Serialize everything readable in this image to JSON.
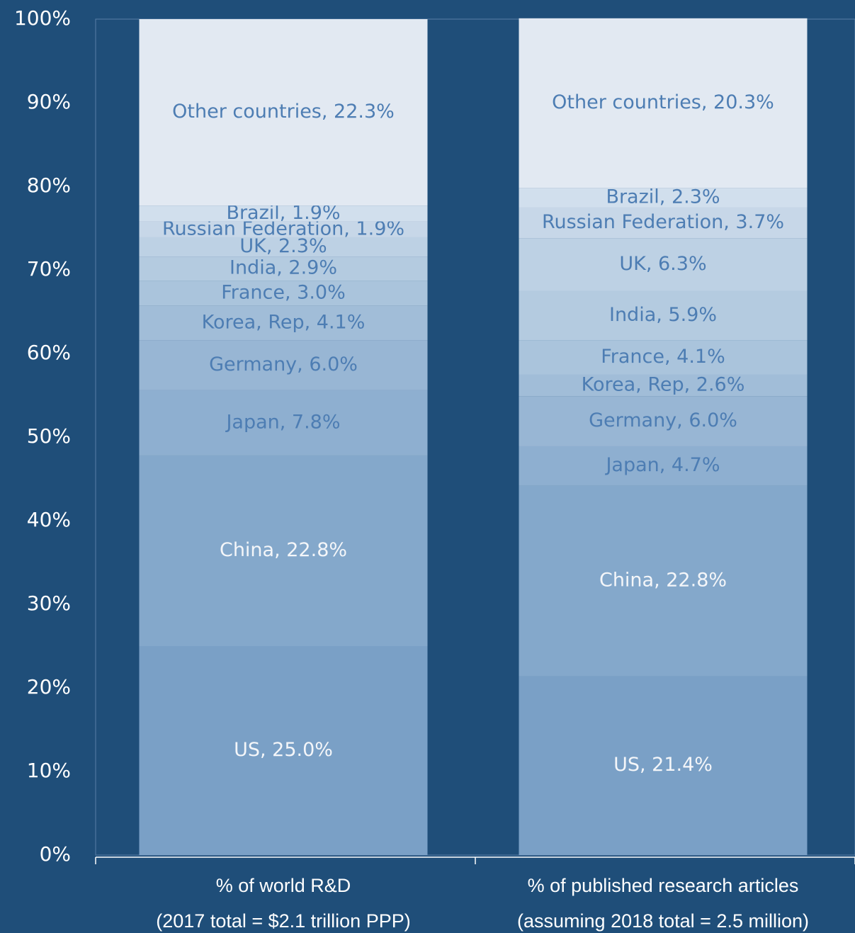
{
  "chart_data": {
    "type": "stacked_bar",
    "categories": [
      "% of world R&D",
      "% of published research articles"
    ],
    "category_notes": [
      "(2017 total = $2.1 trillion PPP)",
      "(assuming 2018 total = 2.5 million)"
    ],
    "ylim": [
      0,
      100
    ],
    "yticks": [
      {
        "value": 0,
        "label": "0%"
      },
      {
        "value": 10,
        "label": "10%"
      },
      {
        "value": 20,
        "label": "20%"
      },
      {
        "value": 30,
        "label": "30%"
      },
      {
        "value": 40,
        "label": "40%"
      },
      {
        "value": 50,
        "label": "50%"
      },
      {
        "value": 60,
        "label": "60%"
      },
      {
        "value": 70,
        "label": "70%"
      },
      {
        "value": 80,
        "label": "80%"
      },
      {
        "value": 90,
        "label": "90%"
      },
      {
        "value": 100,
        "label": "100%"
      }
    ],
    "series": [
      {
        "name": "US",
        "color": "#7aa0c6",
        "values": [
          25.0,
          21.4
        ],
        "value_labels": [
          "US, 25.0%",
          "US, 21.4%"
        ]
      },
      {
        "name": "China",
        "color": "#84a8cb",
        "values": [
          22.8,
          22.8
        ],
        "value_labels": [
          "China, 22.8%",
          "China, 22.8%"
        ]
      },
      {
        "name": "Japan",
        "color": "#8eafd0",
        "values": [
          7.8,
          4.7
        ],
        "value_labels": [
          "Japan, 7.8%",
          "Japan, 4.7%"
        ]
      },
      {
        "name": "Germany",
        "color": "#98b6d4",
        "values": [
          6.0,
          6.0
        ],
        "value_labels": [
          "Germany, 6.0%",
          "Germany, 6.0%"
        ]
      },
      {
        "name": "Korea, Rep",
        "color": "#a1bdd8",
        "values": [
          4.1,
          2.6
        ],
        "value_labels": [
          "Korea, Rep, 4.1%",
          "Korea, Rep, 2.6%"
        ]
      },
      {
        "name": "France",
        "color": "#aac4dc",
        "values": [
          3.0,
          4.1
        ],
        "value_labels": [
          "France, 3.0%",
          "France, 4.1%"
        ]
      },
      {
        "name": "India",
        "color": "#b4cbe0",
        "values": [
          2.9,
          5.9
        ],
        "value_labels": [
          "India, 2.9%",
          "India, 5.9%"
        ]
      },
      {
        "name": "UK",
        "color": "#bdd1e4",
        "values": [
          2.3,
          6.3
        ],
        "value_labels": [
          "UK, 2.3%",
          "UK, 6.3%"
        ]
      },
      {
        "name": "Russian Federation",
        "color": "#c7d7e8",
        "values": [
          1.9,
          3.7
        ],
        "value_labels": [
          "Russian Federation, 1.9%",
          "Russian Federation, 3.7%"
        ]
      },
      {
        "name": "Brazil",
        "color": "#d1dfed",
        "values": [
          1.9,
          2.3
        ],
        "value_labels": [
          "Brazil, 1.9%",
          "Brazil, 2.3%"
        ]
      },
      {
        "name": "Other countries",
        "color": "#e2e9f2",
        "values": [
          22.3,
          20.3
        ],
        "value_labels": [
          "Other countries, 22.3%",
          "Other countries, 20.3%"
        ]
      }
    ]
  }
}
